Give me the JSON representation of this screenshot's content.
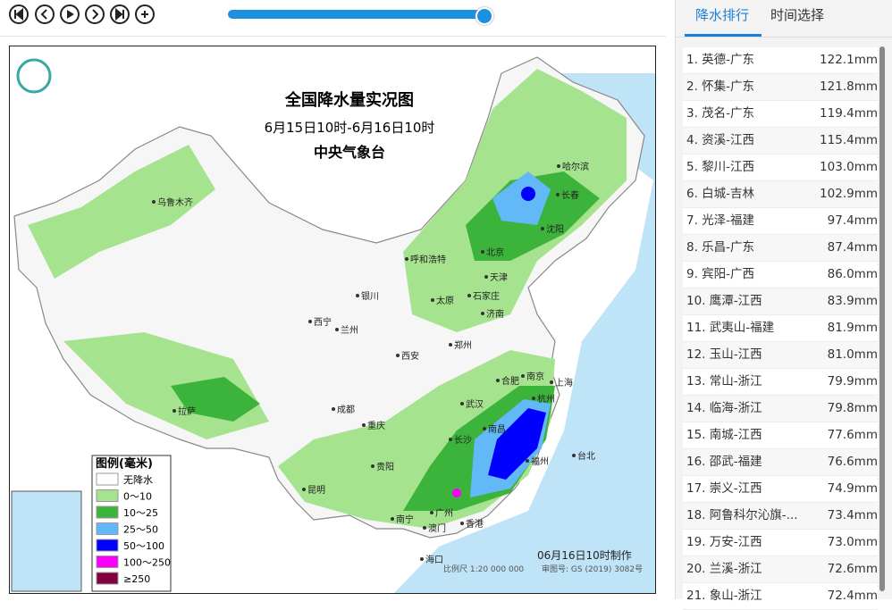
{
  "map": {
    "title": "全国降水量实况图",
    "subtitle": "6月15日10时-6月16日10时",
    "agency": "中央气象台",
    "cities": [
      "乌鲁木齐",
      "哈尔滨",
      "长春",
      "沈阳",
      "呼和浩特",
      "北京",
      "天津",
      "石家庄",
      "太原",
      "济南",
      "银川",
      "西宁",
      "兰州",
      "西安",
      "郑州",
      "合肥",
      "南京",
      "上海",
      "杭州",
      "武汉",
      "成都",
      "重庆",
      "拉萨",
      "长沙",
      "南昌",
      "福州",
      "台北",
      "贵阳",
      "昆明",
      "南宁",
      "广州",
      "澳门",
      "香港",
      "海口"
    ],
    "legend": {
      "title": "图例(毫米)",
      "items": [
        {
          "label": "无降水",
          "color": "#ffffff"
        },
        {
          "label": "0～10",
          "color": "#a6e38f"
        },
        {
          "label": "10～25",
          "color": "#3cb43c"
        },
        {
          "label": "25～50",
          "color": "#63b8f8"
        },
        {
          "label": "50～100",
          "color": "#0000fe"
        },
        {
          "label": "100～250",
          "color": "#fa00fa"
        },
        {
          "label": "≥250",
          "color": "#800040"
        }
      ]
    },
    "footer": "06月16日10时制作",
    "scale": "比例尺 1:20 000 000",
    "review_no": "审图号: GS (2019) 3082号"
  },
  "tabs": [
    "降水排行",
    "时间选择"
  ],
  "ranking": [
    {
      "label": "1. 英德-广东",
      "value": "122.1mm"
    },
    {
      "label": "2. 怀集-广东",
      "value": "121.8mm"
    },
    {
      "label": "3. 茂名-广东",
      "value": "119.4mm"
    },
    {
      "label": "4. 资溪-江西",
      "value": "115.4mm"
    },
    {
      "label": "5. 黎川-江西",
      "value": "103.0mm"
    },
    {
      "label": "6. 白城-吉林",
      "value": "102.9mm"
    },
    {
      "label": "7. 光泽-福建",
      "value": "97.4mm"
    },
    {
      "label": "8. 乐昌-广东",
      "value": "87.4mm"
    },
    {
      "label": "9. 宾阳-广西",
      "value": "86.0mm"
    },
    {
      "label": "10. 鹰潭-江西",
      "value": "83.9mm"
    },
    {
      "label": "11. 武夷山-福建",
      "value": "81.9mm"
    },
    {
      "label": "12. 玉山-江西",
      "value": "81.0mm"
    },
    {
      "label": "13. 常山-浙江",
      "value": "79.9mm"
    },
    {
      "label": "14. 临海-浙江",
      "value": "79.8mm"
    },
    {
      "label": "15. 南城-江西",
      "value": "77.6mm"
    },
    {
      "label": "16. 邵武-福建",
      "value": "76.6mm"
    },
    {
      "label": "17. 崇义-江西",
      "value": "74.9mm"
    },
    {
      "label": "18. 阿鲁科尔沁旗-...",
      "value": "73.4mm"
    },
    {
      "label": "19. 万安-江西",
      "value": "73.0mm"
    },
    {
      "label": "20. 兰溪-浙江",
      "value": "72.6mm"
    },
    {
      "label": "21. 象山-浙江",
      "value": "72.4mm"
    }
  ]
}
